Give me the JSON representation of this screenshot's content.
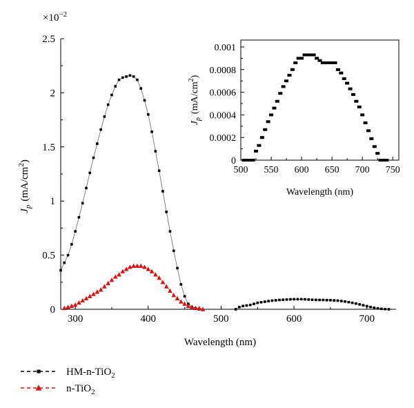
{
  "chart_data": [
    {
      "type": "line",
      "title": "",
      "xlabel": "Wavelength (nm)",
      "ylabel_main": "J",
      "ylabel_sub": "p",
      "ylabel_unit": "(mA/cm",
      "ylabel_unit_sup": "2",
      "ylabel_unit_close": ")",
      "y_multiplier_base": "×10",
      "y_multiplier_exp": "−2",
      "xlim": [
        280,
        740
      ],
      "ylim": [
        0,
        2.5
      ],
      "x_ticks": [
        300,
        400,
        500,
        600,
        700
      ],
      "x_tick_labels": [
        "300",
        "400",
        "500",
        "600",
        "700"
      ],
      "y_ticks": [
        0,
        0.5,
        1,
        1.5,
        2,
        2.5
      ],
      "y_tick_labels": [
        "0",
        "0.5",
        "1",
        "1.5",
        "2",
        "2.5"
      ],
      "legend_position": "bottom-left, below plot",
      "series": [
        {
          "name_main": "HM-n-TiO",
          "name_sub": "2",
          "color": "#000000",
          "marker": "square",
          "points": [
            [
              280,
              0.36
            ],
            [
              285,
              0.43
            ],
            [
              290,
              0.5
            ],
            [
              295,
              0.6
            ],
            [
              300,
              0.72
            ],
            [
              305,
              0.85
            ],
            [
              310,
              0.98
            ],
            [
              315,
              1.12
            ],
            [
              320,
              1.26
            ],
            [
              325,
              1.4
            ],
            [
              330,
              1.53
            ],
            [
              335,
              1.66
            ],
            [
              340,
              1.78
            ],
            [
              345,
              1.89
            ],
            [
              350,
              1.98
            ],
            [
              355,
              2.06
            ],
            [
              360,
              2.12
            ],
            [
              365,
              2.14
            ],
            [
              370,
              2.15
            ],
            [
              375,
              2.16
            ],
            [
              380,
              2.15
            ],
            [
              385,
              2.12
            ],
            [
              390,
              2.04
            ],
            [
              395,
              1.93
            ],
            [
              400,
              1.8
            ],
            [
              405,
              1.64
            ],
            [
              410,
              1.46
            ],
            [
              415,
              1.28
            ],
            [
              420,
              1.09
            ],
            [
              425,
              0.9
            ],
            [
              430,
              0.72
            ],
            [
              435,
              0.54
            ],
            [
              440,
              0.38
            ],
            [
              445,
              0.23
            ],
            [
              450,
              0.12
            ],
            [
              455,
              0.05
            ],
            [
              460,
              0.02
            ],
            [
              465,
              0.01
            ],
            [
              470,
              0.0
            ],
            [
              520,
              0.0
            ],
            [
              525,
              0.02
            ],
            [
              530,
              0.03
            ],
            [
              535,
              0.035
            ],
            [
              540,
              0.04
            ],
            [
              545,
              0.05
            ],
            [
              550,
              0.06
            ],
            [
              555,
              0.065
            ],
            [
              560,
              0.07
            ],
            [
              565,
              0.075
            ],
            [
              570,
              0.08
            ],
            [
              575,
              0.083
            ],
            [
              580,
              0.086
            ],
            [
              585,
              0.088
            ],
            [
              590,
              0.09
            ],
            [
              595,
              0.092
            ],
            [
              600,
              0.093
            ],
            [
              605,
              0.093
            ],
            [
              610,
              0.093
            ],
            [
              615,
              0.092
            ],
            [
              620,
              0.09
            ],
            [
              625,
              0.088
            ],
            [
              630,
              0.087
            ],
            [
              635,
              0.086
            ],
            [
              640,
              0.086
            ],
            [
              645,
              0.085
            ],
            [
              650,
              0.084
            ],
            [
              655,
              0.082
            ],
            [
              660,
              0.08
            ],
            [
              665,
              0.076
            ],
            [
              670,
              0.072
            ],
            [
              675,
              0.066
            ],
            [
              680,
              0.06
            ],
            [
              685,
              0.053
            ],
            [
              690,
              0.045
            ],
            [
              695,
              0.037
            ],
            [
              700,
              0.029
            ],
            [
              705,
              0.021
            ],
            [
              710,
              0.014
            ],
            [
              715,
              0.008
            ],
            [
              720,
              0.004
            ],
            [
              725,
              0.002
            ],
            [
              730,
              0.0
            ]
          ]
        },
        {
          "name_main": "n-TiO",
          "name_sub": "2",
          "color": "#dd1111",
          "marker": "triangle",
          "points": [
            [
              285,
              0.01
            ],
            [
              290,
              0.02
            ],
            [
              295,
              0.03
            ],
            [
              300,
              0.04
            ],
            [
              305,
              0.06
            ],
            [
              310,
              0.08
            ],
            [
              315,
              0.1
            ],
            [
              320,
              0.12
            ],
            [
              325,
              0.14
            ],
            [
              330,
              0.16
            ],
            [
              335,
              0.18
            ],
            [
              340,
              0.21
            ],
            [
              345,
              0.24
            ],
            [
              350,
              0.27
            ],
            [
              355,
              0.3
            ],
            [
              360,
              0.32
            ],
            [
              365,
              0.35
            ],
            [
              370,
              0.37
            ],
            [
              375,
              0.39
            ],
            [
              380,
              0.4
            ],
            [
              385,
              0.4
            ],
            [
              390,
              0.4
            ],
            [
              395,
              0.39
            ],
            [
              400,
              0.37
            ],
            [
              405,
              0.35
            ],
            [
              410,
              0.32
            ],
            [
              415,
              0.29
            ],
            [
              420,
              0.25
            ],
            [
              425,
              0.21
            ],
            [
              430,
              0.17
            ],
            [
              435,
              0.13
            ],
            [
              440,
              0.1
            ],
            [
              445,
              0.07
            ],
            [
              450,
              0.05
            ],
            [
              455,
              0.03
            ],
            [
              460,
              0.02
            ],
            [
              465,
              0.01
            ],
            [
              470,
              0.01
            ],
            [
              475,
              0.0
            ]
          ]
        }
      ]
    },
    {
      "type": "scatter",
      "title": "",
      "xlabel": "Wavelength (nm)",
      "ylabel_main": "J",
      "ylabel_sub": "p",
      "ylabel_unit": "(mA/cm",
      "ylabel_unit_sup": "2",
      "ylabel_unit_close": ")",
      "xlim": [
        500,
        760
      ],
      "ylim": [
        0,
        0.001
      ],
      "x_ticks": [
        500,
        550,
        600,
        650,
        700,
        750
      ],
      "x_tick_labels": [
        "500",
        "550",
        "600",
        "650",
        "700",
        "750"
      ],
      "y_ticks": [
        0,
        0.0002,
        0.0004,
        0.0006,
        0.0008,
        0.001
      ],
      "y_tick_labels": [
        "0",
        "0.0002",
        "0.0004",
        "0.0006",
        "0.0008",
        "0.001"
      ],
      "series": [
        {
          "color": "#000000",
          "marker": "square",
          "points": [
            [
              505,
              0.0
            ],
            [
              510,
              0.0
            ],
            [
              515,
              0.0
            ],
            [
              520,
              0.0
            ],
            [
              525,
              8e-05
            ],
            [
              530,
              0.00013
            ],
            [
              535,
              0.0002
            ],
            [
              540,
              0.00027
            ],
            [
              545,
              0.00034
            ],
            [
              550,
              0.0004
            ],
            [
              555,
              0.00046
            ],
            [
              560,
              0.00052
            ],
            [
              565,
              0.00059
            ],
            [
              570,
              0.00065
            ],
            [
              575,
              0.0007
            ],
            [
              580,
              0.00075
            ],
            [
              585,
              0.0008
            ],
            [
              590,
              0.00086
            ],
            [
              595,
              0.0009
            ],
            [
              600,
              0.0009
            ],
            [
              605,
              0.00093
            ],
            [
              610,
              0.00093
            ],
            [
              615,
              0.00093
            ],
            [
              620,
              0.00093
            ],
            [
              625,
              0.0009
            ],
            [
              630,
              0.00088
            ],
            [
              635,
              0.00086
            ],
            [
              640,
              0.00086
            ],
            [
              645,
              0.00086
            ],
            [
              650,
              0.00086
            ],
            [
              655,
              0.00086
            ],
            [
              660,
              0.0008
            ],
            [
              665,
              0.00077
            ],
            [
              670,
              0.00072
            ],
            [
              675,
              0.00068
            ],
            [
              680,
              0.00063
            ],
            [
              685,
              0.00058
            ],
            [
              690,
              0.00052
            ],
            [
              695,
              0.00047
            ],
            [
              700,
              0.0004
            ],
            [
              705,
              0.00033
            ],
            [
              710,
              0.00026
            ],
            [
              715,
              0.00019
            ],
            [
              720,
              0.00012
            ],
            [
              725,
              6e-05
            ],
            [
              730,
              0.0
            ],
            [
              735,
              0.0
            ],
            [
              740,
              0.0
            ]
          ]
        }
      ]
    }
  ]
}
